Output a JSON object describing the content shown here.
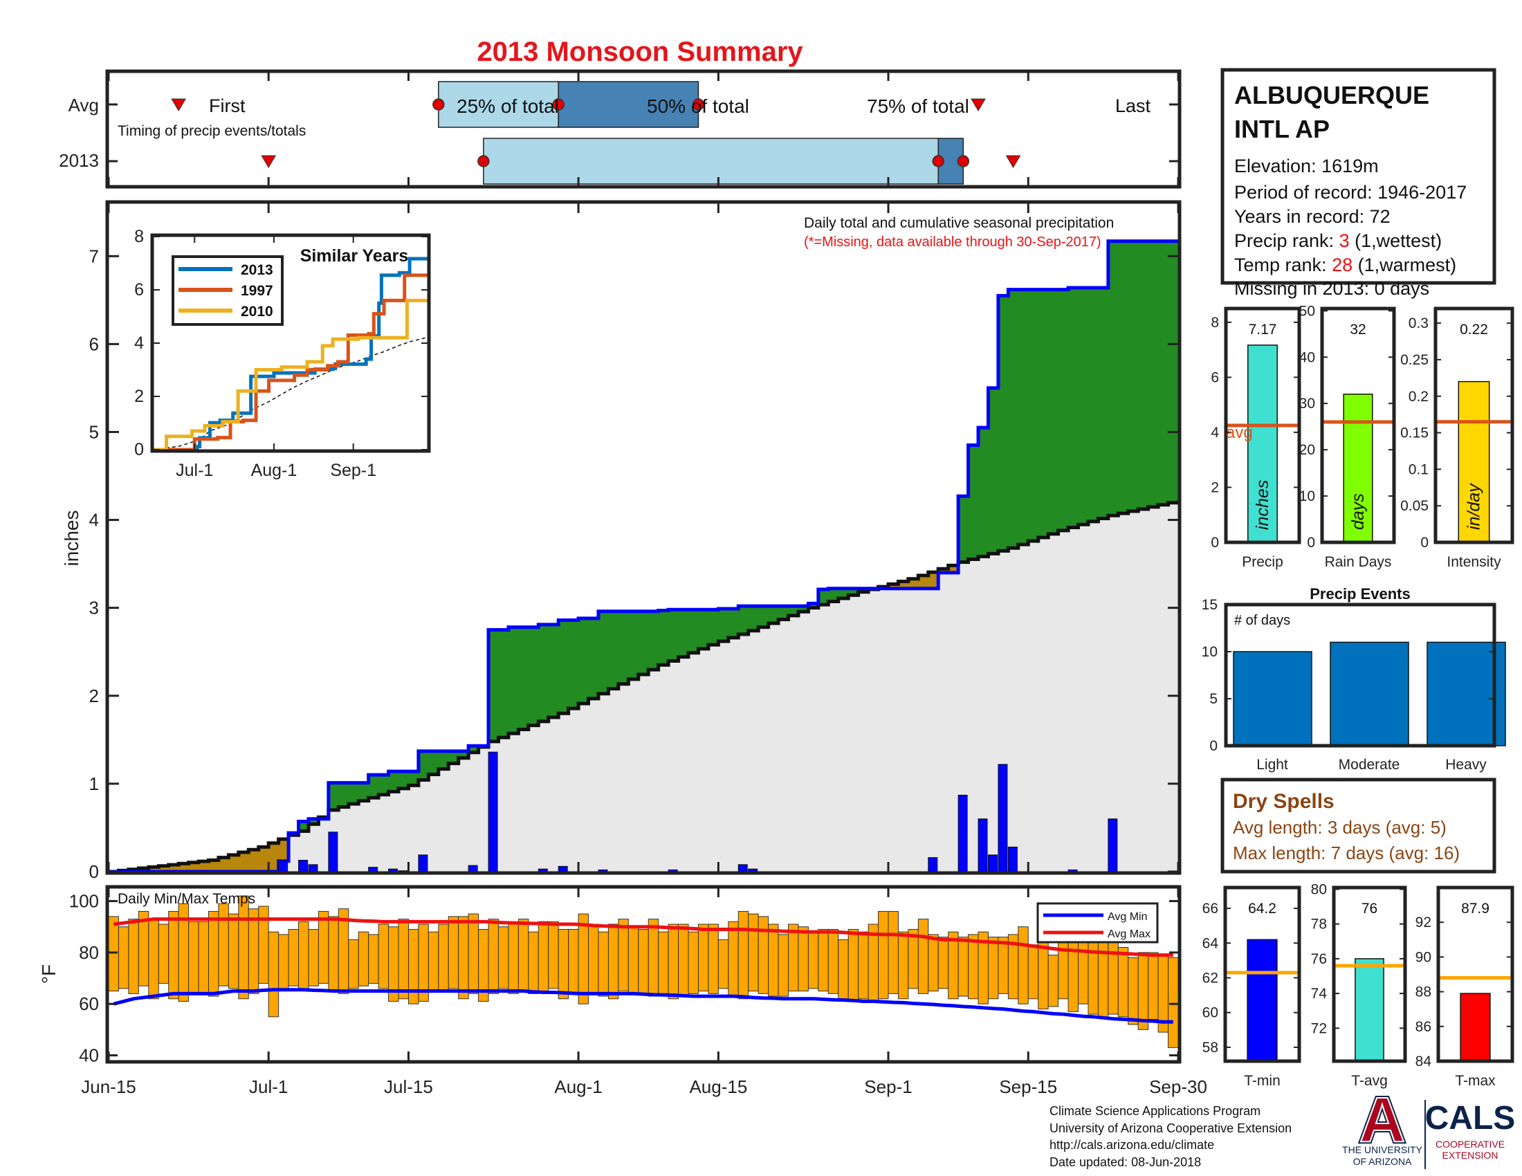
{
  "title": "2013 Monsoon Summary",
  "colors": {
    "title": "#e4161b",
    "barLight": "#acd8e8",
    "barDark": "#4682b4",
    "green": "#228b22",
    "brown": "#b8860b",
    "gray": "#e8e8e8",
    "blue": "#0000ff",
    "orange": "#ffa500",
    "red": "#ee1111",
    "rankRed": "#ee1111",
    "avgLine": "#d95319",
    "dryBrown": "#8b4513"
  },
  "timing": {
    "row_labels": [
      "Avg",
      "2013"
    ],
    "caption": "Timing of precip events/totals",
    "first_label": "First",
    "last_label": "Last",
    "pct25_label": "25% of total",
    "pct50_label": "50% of total",
    "pct75_label": "75% of total",
    "avg": {
      "first": 7,
      "p25": 33,
      "p50": 45,
      "p75": 59,
      "last": 87
    },
    "y2013": {
      "first": 16,
      "p25": 37.5,
      "p50": 83,
      "p75": 85.5,
      "last": 90.5
    }
  },
  "station": {
    "name_line1": "ALBUQUERQUE",
    "name_line2": "INTL AP",
    "elevation": "Elevation: 1619m",
    "period": "Period of record: 1946-2017",
    "years": "Years in record: 72",
    "precip_rank_label": "Precip rank: ",
    "precip_rank_value": "3",
    "precip_rank_note": " (1,wettest)",
    "temp_rank_label": "Temp rank: ",
    "temp_rank_value": "28",
    "temp_rank_note": " (1,warmest)",
    "missing": "Missing in 2013: 0 days"
  },
  "precip_chart": {
    "ylabel": "inches",
    "note": "Daily total and cumulative seasonal precipitation",
    "missing_note": "(*=Missing, data available through 30-Sep-2017)",
    "ylim": [
      0,
      7.6
    ],
    "yticks": [
      0,
      1,
      2,
      3,
      4,
      5,
      6,
      7
    ]
  },
  "chart_data": [
    {
      "type": "area",
      "name": "cumulative-precipitation",
      "x_range": [
        "Jun-15",
        "Sep-30"
      ],
      "x_ticks": [
        "Jun-15",
        "Jul-1",
        "Jul-15",
        "Aug-1",
        "Aug-15",
        "Sep-1",
        "Sep-15",
        "Sep-30"
      ],
      "x_tick_days": [
        0,
        16,
        30,
        47,
        61,
        78,
        92,
        107
      ],
      "cumulative_2013_steps": [
        [
          0,
          0
        ],
        [
          17,
          0.12
        ],
        [
          18,
          0.44
        ],
        [
          19,
          0.57
        ],
        [
          20,
          0.6
        ],
        [
          22,
          1.01
        ],
        [
          26,
          1.1
        ],
        [
          28,
          1.14
        ],
        [
          31,
          1.37
        ],
        [
          36,
          1.43
        ],
        [
          38,
          2.75
        ],
        [
          40,
          2.78
        ],
        [
          43,
          2.81
        ],
        [
          45,
          2.86
        ],
        [
          47,
          2.88
        ],
        [
          49,
          2.96
        ],
        [
          55,
          2.97
        ],
        [
          56,
          2.98
        ],
        [
          61,
          2.99
        ],
        [
          63,
          3.02
        ],
        [
          70,
          3.05
        ],
        [
          71,
          3.21
        ],
        [
          72,
          3.22
        ],
        [
          76,
          3.22
        ],
        [
          83,
          3.4
        ],
        [
          85,
          4.27
        ],
        [
          86,
          4.85
        ],
        [
          87,
          5.05
        ],
        [
          88,
          5.5
        ],
        [
          89,
          6.55
        ],
        [
          90,
          6.62
        ],
        [
          94,
          6.62
        ],
        [
          96,
          6.64
        ],
        [
          100,
          7.17
        ],
        [
          107,
          7.17
        ]
      ],
      "cumulative_avg": [
        [
          0,
          0
        ],
        [
          10,
          0.13
        ],
        [
          15,
          0.28
        ],
        [
          19,
          0.46
        ],
        [
          22,
          0.7
        ],
        [
          30,
          0.98
        ],
        [
          38,
          1.48
        ],
        [
          45,
          1.8
        ],
        [
          50,
          2.08
        ],
        [
          55,
          2.35
        ],
        [
          60,
          2.58
        ],
        [
          65,
          2.78
        ],
        [
          70,
          3.0
        ],
        [
          75,
          3.18
        ],
        [
          80,
          3.33
        ],
        [
          85,
          3.52
        ],
        [
          90,
          3.68
        ],
        [
          95,
          3.88
        ],
        [
          100,
          4.05
        ],
        [
          107,
          4.22
        ]
      ],
      "daily_bars": [
        [
          17,
          0.12
        ],
        [
          19,
          0.13
        ],
        [
          20,
          0.08
        ],
        [
          22,
          0.45
        ],
        [
          26,
          0.05
        ],
        [
          28,
          0.03
        ],
        [
          29,
          0.01
        ],
        [
          31,
          0.19
        ],
        [
          36,
          0.07
        ],
        [
          38,
          1.36
        ],
        [
          43,
          0.03
        ],
        [
          45,
          0.06
        ],
        [
          49,
          0.02
        ],
        [
          56,
          0.02
        ],
        [
          63,
          0.08
        ],
        [
          64,
          0.03
        ],
        [
          82,
          0.16
        ],
        [
          85,
          0.87
        ],
        [
          87,
          0.6
        ],
        [
          88,
          0.19
        ],
        [
          89,
          1.22
        ],
        [
          90,
          0.28
        ],
        [
          96,
          0.02
        ],
        [
          100,
          0.6
        ]
      ]
    },
    {
      "type": "line",
      "name": "similar-years",
      "title": "Similar Years",
      "x_ticks": [
        "Jul-1",
        "Aug-1",
        "Sep-1"
      ],
      "ylim": [
        0,
        8
      ],
      "yticks": [
        0,
        2,
        4,
        6,
        8
      ],
      "series": [
        {
          "name": "2013",
          "color": "#0072bd",
          "steps": [
            [
              0,
              0
            ],
            [
              17,
              0.12
            ],
            [
              18,
              0.44
            ],
            [
              22,
              1.01
            ],
            [
              26,
              1.1
            ],
            [
              31,
              1.37
            ],
            [
              38,
              2.75
            ],
            [
              47,
              2.88
            ],
            [
              63,
              3.02
            ],
            [
              70,
              3.05
            ],
            [
              71,
              3.21
            ],
            [
              83,
              3.4
            ],
            [
              85,
              4.27
            ],
            [
              88,
              5.5
            ],
            [
              89,
              6.55
            ],
            [
              96,
              6.64
            ],
            [
              100,
              7.17
            ],
            [
              107,
              7.17
            ]
          ]
        },
        {
          "name": "1997",
          "color": "#d95319",
          "steps": [
            [
              0,
              0
            ],
            [
              16,
              0.4
            ],
            [
              25,
              0.45
            ],
            [
              30,
              1.05
            ],
            [
              35,
              1.1
            ],
            [
              40,
              2.2
            ],
            [
              45,
              2.6
            ],
            [
              50,
              2.6
            ],
            [
              55,
              2.8
            ],
            [
              60,
              3.0
            ],
            [
              68,
              3.15
            ],
            [
              72,
              3.3
            ],
            [
              76,
              4.3
            ],
            [
              84,
              4.35
            ],
            [
              86,
              5.1
            ],
            [
              90,
              5.6
            ],
            [
              98,
              6.55
            ],
            [
              107,
              6.55
            ]
          ]
        },
        {
          "name": "2010",
          "color": "#edb120",
          "steps": [
            [
              0,
              0
            ],
            [
              5,
              0.5
            ],
            [
              15,
              0.7
            ],
            [
              20,
              0.9
            ],
            [
              27,
              1.05
            ],
            [
              33,
              2.2
            ],
            [
              40,
              3.0
            ],
            [
              50,
              3.1
            ],
            [
              60,
              3.3
            ],
            [
              66,
              3.9
            ],
            [
              70,
              4.15
            ],
            [
              80,
              4.2
            ],
            [
              96,
              4.2
            ],
            [
              99,
              5.6
            ],
            [
              107,
              5.6
            ]
          ]
        }
      ]
    },
    {
      "type": "bar",
      "name": "precip-stats",
      "categories": [
        "Precip",
        "Rain Days",
        "Intensity"
      ],
      "values": [
        7.17,
        32,
        0.22
      ],
      "value_labels": [
        "7.17",
        "32",
        "0.22"
      ],
      "averages": [
        4.25,
        26,
        0.165
      ],
      "ylims": [
        [
          0,
          8.5
        ],
        [
          0,
          50.5
        ],
        [
          0,
          0.32
        ]
      ],
      "yticks": [
        [
          0,
          2,
          4,
          6,
          8
        ],
        [
          0,
          10,
          20,
          30,
          40,
          50
        ],
        [
          0,
          0.05,
          0.1,
          0.15,
          0.2,
          0.25,
          0.3
        ]
      ],
      "units": [
        "inches",
        "days",
        "in/day"
      ],
      "colors": [
        "#40e0d0",
        "#7fff00",
        "#ffd700"
      ],
      "avg_label": "avg"
    },
    {
      "type": "bar",
      "name": "precip-events",
      "title": "Precip Events",
      "ylabel": "# of days",
      "categories": [
        "Light",
        "Moderate",
        "Heavy"
      ],
      "values": [
        10,
        11,
        11
      ],
      "ylim": [
        0,
        15
      ],
      "yticks": [
        0,
        5,
        10,
        15
      ],
      "color": "#0072bd"
    },
    {
      "type": "bar",
      "name": "daily-temps",
      "title": "Daily Min/Max Temps",
      "ylabel": "°F",
      "ylim": [
        38,
        105
      ],
      "yticks": [
        40,
        60,
        80,
        100
      ],
      "legend": [
        "Avg Min",
        "Avg Max"
      ],
      "daily_min": [
        65,
        66,
        64,
        67,
        62,
        68,
        62,
        61,
        64,
        64,
        63,
        67,
        66,
        62,
        64,
        68,
        55,
        66,
        67,
        66,
        67,
        68,
        65,
        64,
        66,
        67,
        68,
        66,
        61,
        62,
        60,
        61,
        65,
        65,
        66,
        62,
        64,
        61,
        64,
        66,
        64,
        65,
        64,
        65,
        66,
        62,
        64,
        60,
        64,
        63,
        62,
        65,
        64,
        64,
        63,
        64,
        62,
        63,
        64,
        65,
        64,
        66,
        63,
        62,
        65,
        64,
        63,
        63,
        65,
        65,
        66,
        65,
        64,
        62,
        61,
        62,
        61,
        62,
        64,
        62,
        66,
        64,
        65,
        66,
        62,
        63,
        62,
        60,
        62,
        64,
        62,
        60,
        62,
        58,
        59,
        62,
        57,
        60,
        56,
        55,
        56,
        55,
        52,
        50,
        54,
        49,
        43
      ],
      "daily_max": [
        94,
        90,
        93,
        96,
        93,
        91,
        96,
        99,
        92,
        92,
        96,
        99,
        95,
        102,
        97,
        98,
        88,
        87,
        89,
        92,
        89,
        96,
        94,
        97,
        85,
        88,
        87,
        91,
        90,
        93,
        89,
        91,
        88,
        91,
        94,
        94,
        95,
        89,
        93,
        90,
        91,
        93,
        88,
        92,
        92,
        89,
        89,
        95,
        91,
        88,
        91,
        93,
        90,
        89,
        93,
        88,
        91,
        91,
        88,
        91,
        91,
        85,
        92,
        96,
        95,
        94,
        91,
        87,
        91,
        90,
        88,
        89,
        89,
        85,
        89,
        88,
        91,
        96,
        96,
        88,
        89,
        93,
        87,
        86,
        88,
        86,
        87,
        88,
        86,
        86,
        87,
        90,
        83,
        84,
        79,
        85,
        84,
        85,
        84,
        86,
        85,
        82,
        78,
        80,
        80,
        79,
        78
      ],
      "avg_min": [
        60,
        61,
        62,
        62.5,
        63,
        63.5,
        64,
        64,
        64,
        64,
        64,
        64.5,
        65,
        65,
        65,
        65.3,
        65.5,
        65.5,
        65.5,
        65.5,
        65.3,
        65.2,
        65,
        65,
        65,
        65,
        65,
        65,
        65,
        65,
        65,
        65,
        65,
        65,
        65,
        65,
        65,
        65,
        65,
        65,
        65,
        65,
        64.7,
        64.5,
        64.5,
        64.3,
        64.1,
        64,
        64,
        64,
        64,
        64,
        64,
        63.8,
        63.6,
        63.5,
        63.4,
        63.2,
        63,
        63,
        63,
        63,
        63,
        62.8,
        62.5,
        62.3,
        62.2,
        62,
        62,
        62,
        62,
        61.8,
        61.6,
        61.5,
        61.3,
        61,
        61,
        60.8,
        60.6,
        60.5,
        60.2,
        60,
        59.8,
        59.5,
        59.3,
        59,
        58.8,
        58.5,
        58.2,
        58,
        57.6,
        57.2,
        57,
        56.6,
        56.2,
        56,
        55.6,
        55.2,
        55,
        54.6,
        54.2,
        54,
        53.8,
        53.5,
        53.3,
        53,
        53
      ],
      "avg_max": [
        91,
        91.5,
        92,
        92.5,
        93,
        93,
        93,
        93,
        93,
        93,
        93,
        93,
        93,
        93,
        93,
        93,
        93,
        93,
        93,
        93,
        93,
        93,
        93,
        92.8,
        92.5,
        92.3,
        92.2,
        92,
        92,
        92,
        92,
        92,
        92,
        92,
        92,
        92,
        92,
        92,
        91.8,
        91.6,
        91.5,
        91.4,
        91.3,
        91.2,
        91,
        91,
        91,
        90.8,
        90.5,
        90.3,
        90.2,
        90,
        90,
        90,
        90,
        89.8,
        89.6,
        89.5,
        89.3,
        89,
        89,
        89,
        89,
        89,
        88.8,
        88.6,
        88.5,
        88.3,
        88.2,
        88,
        88,
        88,
        88,
        87.8,
        87.5,
        87.3,
        87.1,
        87,
        87,
        86.8,
        86.5,
        86.2,
        85.5,
        85,
        85,
        84.8,
        84.5,
        84.2,
        84,
        83.8,
        83.5,
        83,
        82.5,
        82,
        81.5,
        81,
        80.8,
        80.5,
        80.2,
        80,
        79.8,
        79.6,
        79.4,
        79.2,
        79,
        79,
        79
      ]
    },
    {
      "type": "bar",
      "name": "temp-stats",
      "categories": [
        "T-min",
        "T-avg",
        "T-max"
      ],
      "values": [
        64.2,
        76,
        87.9
      ],
      "value_labels": [
        "64.2",
        "76",
        "87.9"
      ],
      "averages": [
        62.3,
        75.6,
        88.8
      ],
      "ylims": [
        [
          57.2,
          67.2
        ],
        [
          70.1,
          80.1
        ],
        [
          84,
          94
        ]
      ],
      "yticks": [
        [
          58,
          60,
          62,
          64,
          66
        ],
        [
          72,
          74,
          76,
          78,
          80
        ],
        [
          84,
          86,
          88,
          90,
          92
        ]
      ],
      "colors": [
        "#0000ff",
        "#40e0d0",
        "#ff0000"
      ],
      "avg_color": "#ffa500"
    }
  ],
  "dry_spells": {
    "title": "Dry Spells",
    "avg_length": "Avg length: 3 days (avg: 5)",
    "max_length": "Max length: 7 days (avg: 16)"
  },
  "footer": {
    "line1": "Climate Science Applications Program",
    "line2": "University of Arizona Cooperative Extension",
    "line3": "http://cals.arizona.edu/climate",
    "line4": " Date updated: 08-Jun-2018"
  },
  "logos": {
    "ua_letter": "A",
    "ua_line1": "THE UNIVERSITY",
    "ua_line2": "OF ARIZONA",
    "cals": "CALS",
    "cals_line1": "COOPERATIVE",
    "cals_line2": "EXTENSION"
  }
}
